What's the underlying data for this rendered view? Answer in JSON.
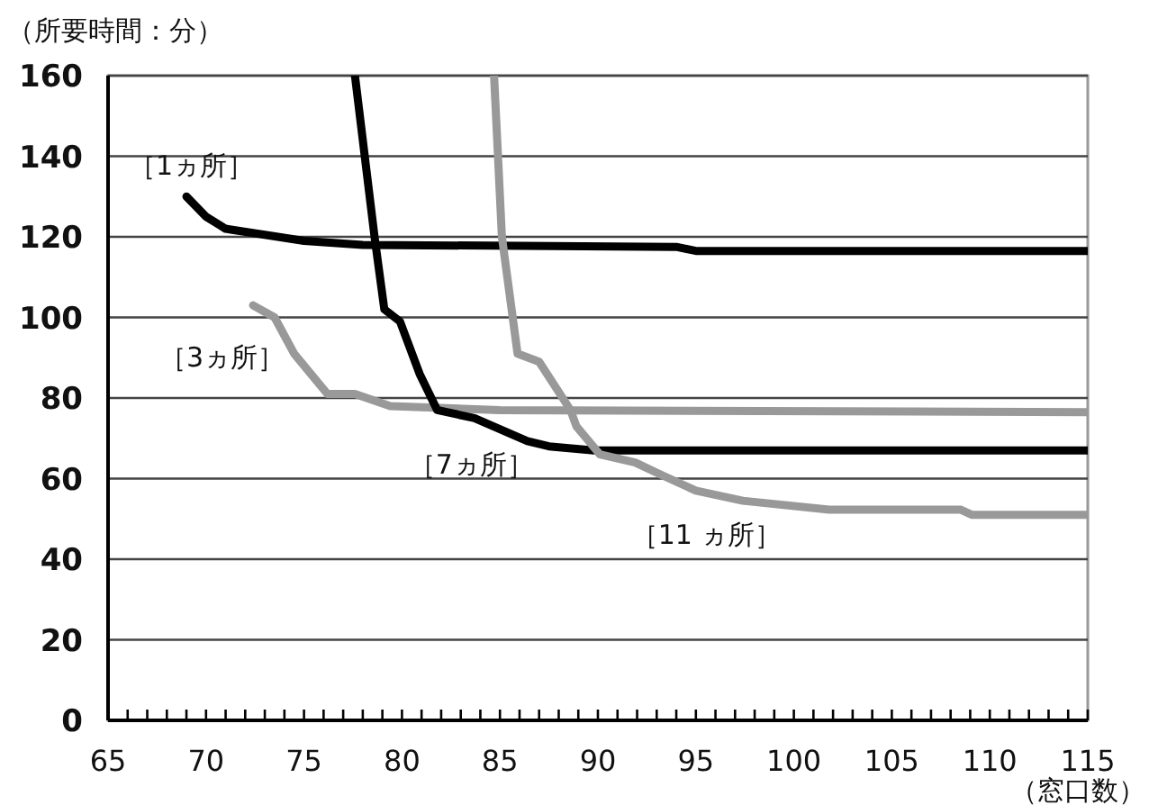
{
  "chart_data": {
    "type": "line",
    "ylabel": "（所要時間：分）",
    "xlabel": "（窓口数）",
    "xlim": [
      65,
      115
    ],
    "ylim": [
      0,
      160
    ],
    "xticks": [
      65,
      {
        "value": 66,
        "label": null
      },
      {
        "value": 67,
        "label": null
      },
      {
        "value": 68,
        "label": null
      },
      {
        "value": 69,
        "label": null
      },
      70,
      {
        "value": 71,
        "label": null
      },
      {
        "value": 72,
        "label": null
      },
      {
        "value": 73,
        "label": null
      },
      {
        "value": 74,
        "label": null
      },
      75,
      {
        "value": 76,
        "label": null
      },
      {
        "value": 77,
        "label": null
      },
      {
        "value": 78,
        "label": null
      },
      {
        "value": 79,
        "label": null
      },
      80,
      {
        "value": 81,
        "label": null
      },
      {
        "value": 82,
        "label": null
      },
      {
        "value": 83,
        "label": null
      },
      {
        "value": 84,
        "label": null
      },
      85,
      {
        "value": 86,
        "label": null
      },
      {
        "value": 87,
        "label": null
      },
      {
        "value": 88,
        "label": null
      },
      {
        "value": 89,
        "label": null
      },
      90,
      {
        "value": 91,
        "label": null
      },
      {
        "value": 92,
        "label": null
      },
      {
        "value": 93,
        "label": null
      },
      {
        "value": 94,
        "label": null
      },
      95,
      {
        "value": 96,
        "label": null
      },
      {
        "value": 97,
        "label": null
      },
      {
        "value": 98,
        "label": null
      },
      {
        "value": 99,
        "label": null
      },
      100,
      {
        "value": 101,
        "label": null
      },
      {
        "value": 102,
        "label": null
      },
      {
        "value": 103,
        "label": null
      },
      {
        "value": 104,
        "label": null
      },
      105,
      {
        "value": 106,
        "label": null
      },
      {
        "value": 107,
        "label": null
      },
      {
        "value": 108,
        "label": null
      },
      {
        "value": 109,
        "label": null
      },
      110,
      {
        "value": 111,
        "label": null
      },
      {
        "value": 112,
        "label": null
      },
      {
        "value": 113,
        "label": null
      },
      {
        "value": 114,
        "label": null
      },
      115
    ],
    "yticks": [
      0,
      20,
      40,
      60,
      80,
      100,
      120,
      140,
      160
    ],
    "grid": "y",
    "marker": "none",
    "line_style": "solid",
    "series": [
      {
        "name": "［1ヵ所］",
        "color": "#000000",
        "x": [
          69,
          70,
          71,
          73,
          75,
          78,
          94,
          95,
          115
        ],
        "values": [
          130,
          125,
          122,
          120.5,
          119,
          118,
          117.5,
          116.5,
          116.5
        ]
      },
      {
        "name": "［3ヵ所］",
        "color": "#999999",
        "x": [
          72.4,
          73.5,
          74.5,
          76.2,
          77.6,
          79.4,
          85,
          115
        ],
        "values": [
          103,
          100,
          91,
          81,
          81,
          78,
          77,
          76.5
        ]
      },
      {
        "name": "［7ヵ所］",
        "color": "#000000",
        "x": [
          77.6,
          78.6,
          79.1,
          79.9,
          80.9,
          81.8,
          83.7,
          86.4,
          87.5,
          89.8,
          115
        ],
        "values": [
          160,
          120,
          102,
          99,
          86,
          77,
          75,
          69.3,
          68,
          67,
          67
        ]
      },
      {
        "name": "［11 ヵ所］",
        "color": "#999999",
        "x": [
          84.7,
          85.1,
          85.9,
          87,
          88.6,
          88.9,
          90.1,
          91.9,
          93.2,
          95,
          97.4,
          101.8,
          108.5,
          109.1,
          115
        ],
        "values": [
          160,
          120,
          91,
          89,
          77,
          73,
          66,
          64,
          61,
          57,
          54.5,
          52.3,
          52.3,
          51,
          51
        ]
      }
    ]
  }
}
